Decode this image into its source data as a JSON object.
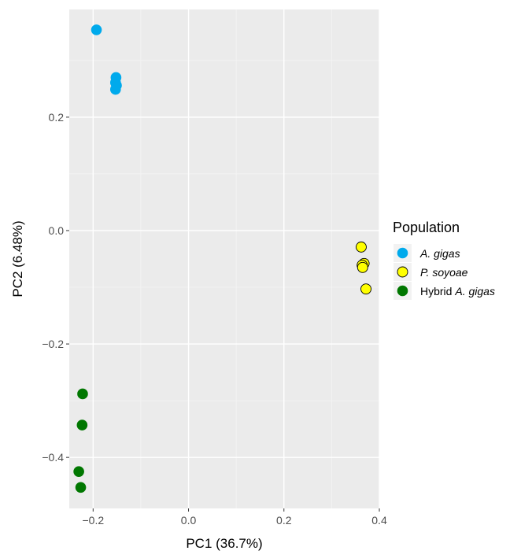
{
  "chart_data": {
    "type": "scatter",
    "xlabel": "PC1 (36.7%)",
    "ylabel": "PC2 (6.48%)",
    "xlim": [
      -0.25,
      0.4
    ],
    "ylim": [
      -0.49,
      0.39
    ],
    "x_ticks": [
      -0.2,
      0.0,
      0.2,
      0.4
    ],
    "x_tick_labels": [
      "−0.2",
      "0.0",
      "0.2",
      "0.4"
    ],
    "y_ticks": [
      -0.4,
      -0.2,
      0.0,
      0.2
    ],
    "y_tick_labels": [
      "−0.4",
      "−0.2",
      "0.0",
      "0.2"
    ],
    "grid": true,
    "panel_background": "#ebebeb",
    "legend_title": "Population",
    "legend_position": "right",
    "series": [
      {
        "name": "A. gigas",
        "label_prefix": "",
        "label_italic": "A. gigas",
        "fill": "#00aaec",
        "stroke": "#00aaec",
        "points": [
          {
            "x": -0.193,
            "y": 0.354
          },
          {
            "x": -0.152,
            "y": 0.27
          },
          {
            "x": -0.153,
            "y": 0.261
          },
          {
            "x": -0.151,
            "y": 0.256
          },
          {
            "x": -0.153,
            "y": 0.249
          }
        ]
      },
      {
        "name": "P. soyoae",
        "label_prefix": "",
        "label_italic": "P. soyoae",
        "fill": "#ffff00",
        "stroke": "#000000",
        "points": [
          {
            "x": 0.362,
            "y": -0.029
          },
          {
            "x": 0.368,
            "y": -0.058
          },
          {
            "x": 0.364,
            "y": -0.061
          },
          {
            "x": 0.365,
            "y": -0.065
          },
          {
            "x": 0.372,
            "y": -0.103
          }
        ]
      },
      {
        "name": "Hybrid A. gigas",
        "label_prefix": "Hybrid ",
        "label_italic": "A. gigas",
        "fill": "#007700",
        "stroke": "#007700",
        "points": [
          {
            "x": -0.222,
            "y": -0.288
          },
          {
            "x": -0.223,
            "y": -0.343
          },
          {
            "x": -0.23,
            "y": -0.425
          },
          {
            "x": -0.226,
            "y": -0.453
          }
        ]
      }
    ]
  }
}
